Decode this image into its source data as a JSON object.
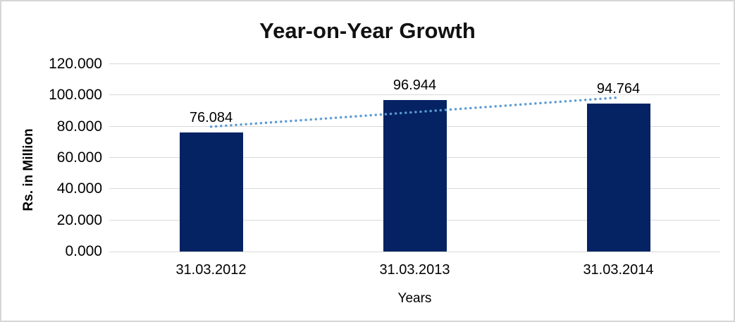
{
  "window": {
    "background_color": "#ffffff",
    "border_color": "#d6d6d6"
  },
  "chart_data": {
    "type": "bar",
    "title": "Year-on-Year Growth",
    "xlabel": "Years",
    "ylabel": "Rs. in Million",
    "categories": [
      "31.03.2012",
      "31.03.2013",
      "31.03.2014"
    ],
    "values": [
      76.084,
      96.944,
      94.764
    ],
    "data_labels": [
      "76.084",
      "96.944",
      "94.764"
    ],
    "ylim": [
      0,
      120
    ],
    "ytick_step": 20,
    "ytick_labels": [
      "0.000",
      "20.000",
      "40.000",
      "60.000",
      "80.000",
      "100.000",
      "120.000"
    ],
    "grid": true,
    "legend": "none",
    "bar_color": "#052363",
    "gridline_color": "#d9d9d9",
    "text_color": "#000000",
    "trendline": {
      "type": "linear",
      "style": "dotted",
      "color": "#5b9bd5",
      "start_value": 79.924,
      "end_value": 98.604
    }
  }
}
